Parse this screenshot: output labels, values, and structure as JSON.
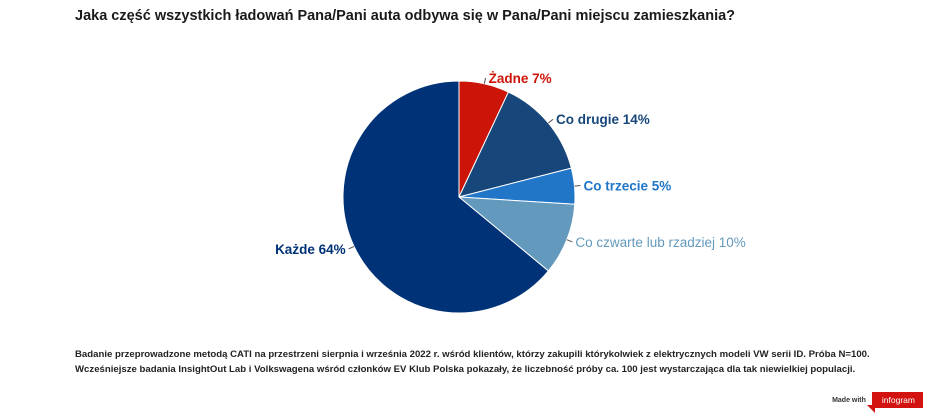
{
  "title": "Jaka część wszystkich ładowań Pana/Pani auta odbywa się w Pana/Pani miejscu zamieszkania?",
  "chart_data": {
    "type": "pie",
    "slices": [
      {
        "label": "Żadne 7%",
        "value": 7,
        "color": "#cc1409"
      },
      {
        "label": "Co drugie 14%",
        "value": 14,
        "color": "#16467a"
      },
      {
        "label": "Co trzecie 5%",
        "value": 5,
        "color": "#2176c8"
      },
      {
        "label": "Co czwarte lub rzadziej 10%",
        "value": 10,
        "color": "#6399bd"
      },
      {
        "label": "Każde 64%",
        "value": 64,
        "color": "#003277"
      }
    ]
  },
  "note": {
    "line1": "Badanie przeprowadzone metodą CATI na przestrzeni sierpnia i września 2022 r. wśród klientów, którzy zakupili którykolwiek z elektrycznych modeli VW serii ID. Próba N=100.",
    "line2": "Wcześniejsze badania InsightOut Lab i Volkswagena wśród członków EV Klub Polska pokazały, że liczebność próby ca. 100 jest wystarczająca dla tak niewielkiej populacji."
  },
  "footer": {
    "made_with": "Made with",
    "brand": "infogram"
  }
}
